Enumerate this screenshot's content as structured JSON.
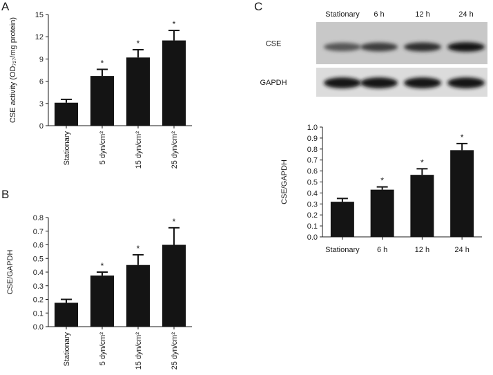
{
  "panels": {
    "a": {
      "letter": "A"
    },
    "b": {
      "letter": "B"
    },
    "c": {
      "letter": "C"
    }
  },
  "blot": {
    "lanes": [
      "Stationary",
      "6 h",
      "12 h",
      "24 h"
    ],
    "bands": [
      {
        "name": "CSE",
        "intensity": [
          0.55,
          0.7,
          0.78,
          0.92
        ]
      },
      {
        "name": "GAPDH",
        "intensity": [
          0.95,
          0.95,
          0.95,
          0.95
        ]
      }
    ]
  },
  "chart_data": [
    {
      "id": "A",
      "type": "bar",
      "categories": [
        "Stationary",
        "5 dyn/cm²",
        "15 dyn/cm²",
        "25 dyn/cm²"
      ],
      "values": [
        3.1,
        6.7,
        9.2,
        11.5
      ],
      "errors": [
        0.45,
        0.9,
        1.05,
        1.35
      ],
      "significance": [
        "",
        "*",
        "*",
        "*"
      ],
      "ylabel": "CSE activity (OD₇₂₇/mg protein)",
      "ylim": [
        0,
        15
      ],
      "yticks": [
        0,
        3,
        6,
        9,
        12,
        15
      ],
      "xtick_rotation": "vertical",
      "bar_color": "#141414"
    },
    {
      "id": "B",
      "type": "bar",
      "categories": [
        "Stationary",
        "5 dyn/cm²",
        "15 dyn/cm²",
        "25 dyn/cm²"
      ],
      "values": [
        0.175,
        0.375,
        0.452,
        0.6
      ],
      "errors": [
        0.025,
        0.025,
        0.075,
        0.125
      ],
      "significance": [
        "",
        "*",
        "*",
        "*"
      ],
      "ylabel": "CSE/GAPDH",
      "ylim": [
        0,
        0.8
      ],
      "yticks": [
        0,
        0.1,
        0.2,
        0.3,
        0.4,
        0.5,
        0.6,
        0.7,
        0.8
      ],
      "xtick_rotation": "vertical",
      "bar_color": "#141414"
    },
    {
      "id": "C",
      "type": "bar",
      "categories": [
        "Stationary",
        "6 h",
        "12 h",
        "24 h"
      ],
      "values": [
        0.32,
        0.43,
        0.565,
        0.79
      ],
      "errors": [
        0.03,
        0.025,
        0.055,
        0.06
      ],
      "significance": [
        "",
        "*",
        "*",
        "*"
      ],
      "ylabel": "CSE/GAPDH",
      "ylim": [
        0,
        1.0
      ],
      "yticks": [
        0,
        0.1,
        0.2,
        0.3,
        0.4,
        0.5,
        0.6,
        0.7,
        0.8,
        0.9,
        1.0
      ],
      "xtick_rotation": "horizontal",
      "bar_color": "#141414"
    }
  ]
}
